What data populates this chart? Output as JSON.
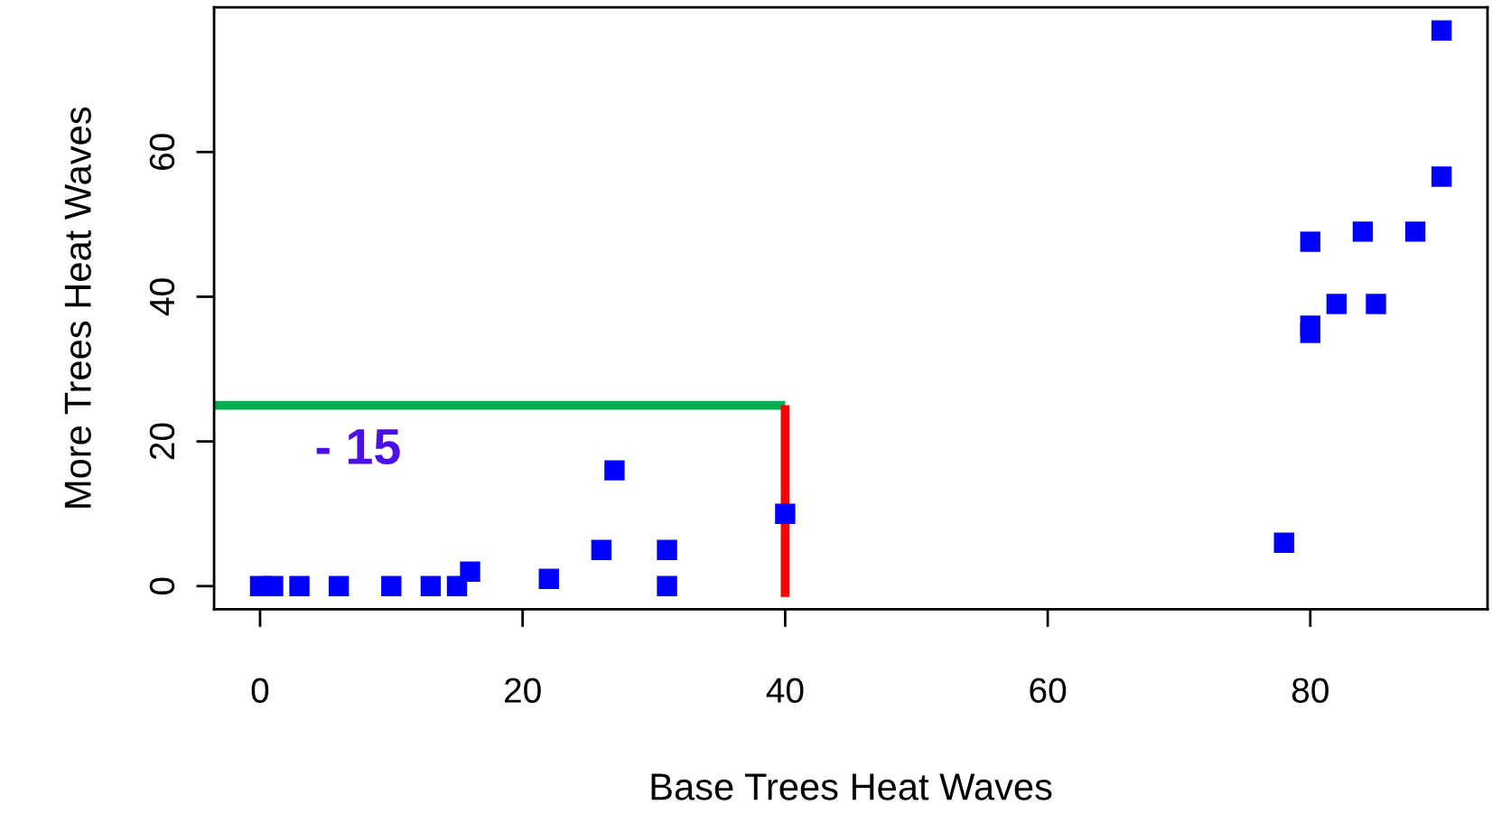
{
  "chart_data": {
    "type": "scatter",
    "xlabel": "Base Trees Heat Waves",
    "ylabel": "More Trees Heat Waves",
    "xlim": [
      -3.5,
      93.5
    ],
    "ylim": [
      -3.2,
      80
    ],
    "xticks": [
      0,
      20,
      40,
      60,
      80
    ],
    "yticks": [
      0,
      20,
      40,
      60
    ],
    "grid": false,
    "series": [
      {
        "marker": "square",
        "color": "#0000ff",
        "x": [
          0,
          1,
          3,
          6,
          10,
          13,
          15,
          16,
          22,
          26,
          27,
          31,
          31,
          40,
          78,
          80,
          80,
          80,
          82,
          84,
          85,
          88,
          90,
          90
        ],
        "values": [
          0,
          0,
          0,
          0,
          0,
          0,
          0,
          2,
          1,
          5,
          16,
          5,
          0,
          10,
          6,
          47.6,
          36,
          35,
          39,
          49,
          39,
          49,
          56.6,
          76.8
        ]
      },
      {
        "type": "line",
        "color": "#00b050",
        "x": [
          -3.5,
          40
        ],
        "values": [
          25,
          25
        ]
      },
      {
        "type": "line",
        "color": "#ff0000",
        "x": [
          40,
          40
        ],
        "values": [
          -1.5,
          25
        ]
      }
    ],
    "annotations": [
      "- 15"
    ]
  }
}
